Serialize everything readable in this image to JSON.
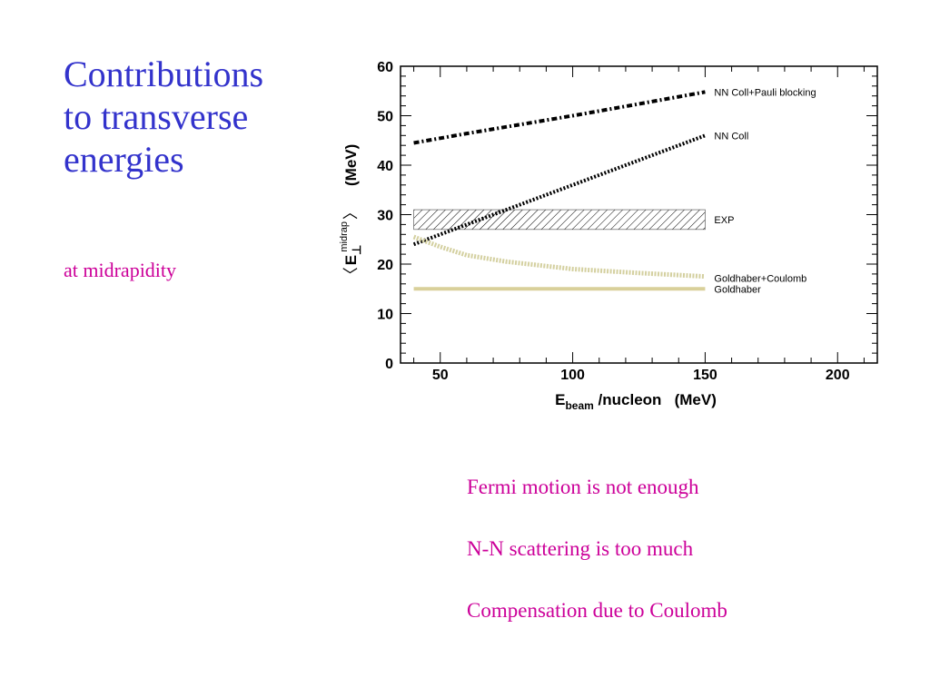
{
  "slide": {
    "title_lines": [
      "Contributions",
      "to transverse",
      "energies"
    ],
    "subtitle": "at midrapidity",
    "notes": [
      "Fermi motion is not enough",
      "N-N scattering is too much",
      "Compensation due to Coulomb"
    ]
  },
  "chart_data": {
    "type": "line",
    "xlim": [
      35,
      215
    ],
    "ylim": [
      0,
      60
    ],
    "xticks": [
      50,
      100,
      150,
      200
    ],
    "yticks": [
      0,
      10,
      20,
      30,
      40,
      50,
      60
    ],
    "xlabel": "E_beam /nucleon (MeV)",
    "xlabel_parts": {
      "main": "E",
      "sub": "beam",
      "rest": " /nucleon   (MeV)"
    },
    "ylabel": "⟨ E⊥midrap ⟩ (MeV)",
    "ylabel_parts": {
      "open": "〈",
      "main": "E",
      "sub": "⊥",
      "sup": "midrap",
      "close": "〉",
      "unit": "(MeV)"
    },
    "grid": false,
    "band": {
      "name": "EXP",
      "x": [
        40,
        150
      ],
      "y": [
        27,
        31
      ],
      "color": "#000000"
    },
    "series": [
      {
        "name": "NN Coll+Pauli blocking",
        "style": "dashdot",
        "color": "#000000",
        "x": [
          40,
          60,
          80,
          100,
          120,
          150
        ],
        "y": [
          44.5,
          46.4,
          48.2,
          50.0,
          51.9,
          54.8
        ]
      },
      {
        "name": "NN Coll",
        "style": "dotted",
        "color": "#000000",
        "x": [
          40,
          60,
          80,
          100,
          120,
          150
        ],
        "y": [
          24.0,
          28.0,
          32.0,
          36.0,
          40.0,
          46.0
        ]
      },
      {
        "name": "Goldhaber+Coulomb",
        "style": "dotted-thick",
        "color": "#d4d0a0",
        "x": [
          40,
          50,
          60,
          75,
          100,
          125,
          150
        ],
        "y": [
          25.5,
          23.5,
          21.8,
          20.5,
          19.0,
          18.2,
          17.5
        ]
      },
      {
        "name": "Goldhaber",
        "style": "solid",
        "color": "#d9d09a",
        "x": [
          40,
          150
        ],
        "y": [
          15.0,
          15.0
        ]
      }
    ]
  }
}
